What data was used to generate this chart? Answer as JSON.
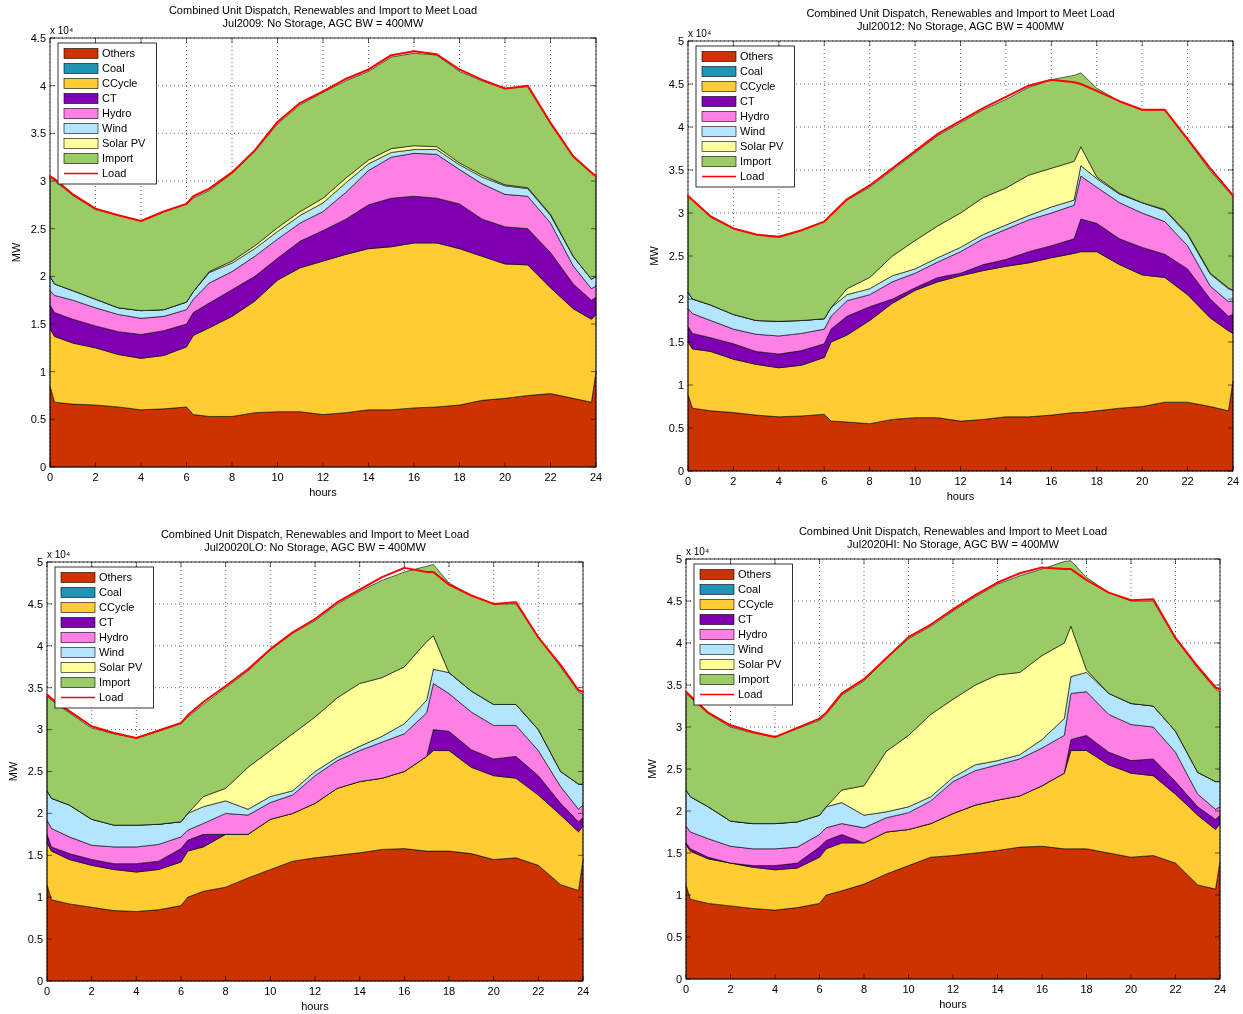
{
  "chart_data": [
    {
      "type": "area",
      "stacked": true,
      "title": "Combined Unit Dispatch, Renewables and Import to Meet Load",
      "subtitle": "Jul2009: No Storage, AGC BW = 400MW",
      "xlabel": "hours",
      "ylabel": "MW",
      "annotations": [
        "x 10⁴"
      ],
      "xlim": [
        0,
        24
      ],
      "xticks": [
        0,
        2,
        4,
        6,
        8,
        10,
        12,
        14,
        16,
        18,
        20,
        22,
        24
      ],
      "ylim": [
        0,
        4.5
      ],
      "yticks": [
        0,
        0.5,
        1,
        1.5,
        2,
        2.5,
        3,
        3.5,
        4,
        4.5
      ],
      "grid": true,
      "legend": "top left",
      "x": [
        0,
        0.2,
        1,
        2,
        3,
        4,
        5,
        6,
        6.3,
        7,
        8,
        9,
        10,
        11,
        12,
        13,
        14,
        15,
        16,
        17,
        18,
        19,
        20,
        21,
        22,
        23,
        23.8,
        24
      ],
      "series": [
        {
          "name": "Others",
          "color": "#cc3300",
          "values": [
            0.85,
            0.68,
            0.66,
            0.65,
            0.63,
            0.6,
            0.61,
            0.63,
            0.55,
            0.53,
            0.53,
            0.57,
            0.58,
            0.58,
            0.55,
            0.57,
            0.6,
            0.6,
            0.62,
            0.63,
            0.65,
            0.7,
            0.72,
            0.75,
            0.77,
            0.72,
            0.68,
            1.0
          ]
        },
        {
          "name": "Coal",
          "color": "#1f94b4",
          "values": [
            null,
            null,
            null,
            null,
            null,
            null,
            null,
            null,
            null,
            null,
            null,
            null,
            null,
            null,
            null,
            null,
            null,
            null,
            null,
            null,
            null,
            null,
            null,
            null,
            null,
            null,
            null,
            null
          ]
        },
        {
          "name": "CCycle",
          "color": "#ffcc33",
          "values": [
            0.6,
            0.69,
            0.64,
            0.6,
            0.55,
            0.54,
            0.56,
            0.63,
            0.83,
            0.93,
            1.05,
            1.17,
            1.38,
            1.51,
            1.61,
            1.66,
            1.69,
            1.71,
            1.73,
            1.72,
            1.64,
            1.51,
            1.41,
            1.37,
            1.11,
            0.94,
            0.87,
            0.6
          ]
        },
        {
          "name": "CT",
          "color": "#7f00b2",
          "values": [
            0.25,
            0.25,
            0.25,
            0.23,
            0.24,
            0.25,
            0.26,
            0.24,
            0.24,
            0.26,
            0.28,
            0.26,
            0.23,
            0.28,
            0.32,
            0.37,
            0.46,
            0.51,
            0.49,
            0.47,
            0.47,
            0.39,
            0.39,
            0.38,
            0.37,
            0.26,
            0.2,
            0.18
          ]
        },
        {
          "name": "Hydro",
          "color": "#ff80e5",
          "values": [
            0.15,
            0.18,
            0.2,
            0.19,
            0.18,
            0.17,
            0.15,
            0.15,
            0.14,
            0.21,
            0.19,
            0.21,
            0.2,
            0.19,
            0.2,
            0.28,
            0.36,
            0.43,
            0.45,
            0.46,
            0.36,
            0.37,
            0.34,
            0.34,
            0.31,
            0.19,
            0.12,
            0.12
          ]
        },
        {
          "name": "Wind",
          "color": "#b3e5ff",
          "values": [
            0.15,
            0.12,
            0.1,
            0.09,
            0.07,
            0.08,
            0.07,
            0.08,
            0.08,
            0.11,
            0.09,
            0.08,
            0.08,
            0.08,
            0.09,
            0.1,
            0.07,
            0.05,
            0.04,
            0.05,
            0.05,
            0.07,
            0.09,
            0.08,
            0.08,
            0.1,
            0.1,
            0.1
          ]
        },
        {
          "name": "Solar PV",
          "color": "#ffff99",
          "values": [
            0,
            0,
            0,
            0,
            0,
            0,
            0,
            0,
            0,
            0.01,
            0.02,
            0.03,
            0.04,
            0.04,
            0.05,
            0.05,
            0.04,
            0.04,
            0.04,
            0.03,
            0.02,
            0.02,
            0.01,
            0.01,
            0.01,
            0,
            0,
            0
          ]
        },
        {
          "name": "Import",
          "color": "#99cc66",
          "values": [
            1.05,
            1.08,
            1.0,
            0.94,
            0.97,
            0.94,
            1.03,
            1.03,
            0.98,
            0.85,
            0.92,
            0.99,
            1.09,
            1.12,
            1.11,
            1.02,
            0.93,
            0.96,
            0.97,
            0.96,
            0.96,
            0.99,
            1.01,
            1.06,
            0.95,
            1.04,
            1.11,
            1.05
          ]
        },
        {
          "name": "Load",
          "type": "line",
          "color": "#ff0000",
          "values": [
            3.05,
            3.02,
            2.86,
            2.71,
            2.64,
            2.58,
            2.68,
            2.76,
            2.84,
            2.92,
            3.09,
            3.32,
            3.62,
            3.82,
            3.94,
            4.07,
            4.17,
            4.32,
            4.36,
            4.33,
            4.17,
            4.06,
            3.97,
            4.0,
            3.61,
            3.26,
            3.09,
            3.05
          ]
        }
      ]
    },
    {
      "type": "area",
      "stacked": true,
      "title": "Combined Unit Dispatch, Renewables and Import to Meet Load",
      "subtitle": "Jul20012: No Storage, AGC BW = 400MW",
      "xlabel": "hours",
      "ylabel": "MW",
      "annotations": [
        "x 10⁴"
      ],
      "xlim": [
        0,
        24
      ],
      "xticks": [
        0,
        2,
        4,
        6,
        8,
        10,
        12,
        14,
        16,
        18,
        20,
        22,
        24
      ],
      "ylim": [
        0,
        5
      ],
      "yticks": [
        0,
        0.5,
        1,
        1.5,
        2,
        2.5,
        3,
        3.5,
        4,
        4.5,
        5
      ],
      "grid": true,
      "legend": "top left",
      "x": [
        0,
        0.2,
        1,
        2,
        3,
        4,
        5,
        6,
        6.3,
        7,
        8,
        9,
        10,
        11,
        12,
        13,
        14,
        15,
        16,
        17,
        17.3,
        18,
        19,
        20,
        21,
        22,
        23,
        23.8,
        24
      ],
      "series": [
        {
          "name": "Others",
          "color": "#cc3300",
          "values": [
            0.89,
            0.73,
            0.7,
            0.68,
            0.65,
            0.63,
            0.64,
            0.66,
            0.58,
            0.57,
            0.55,
            0.6,
            0.62,
            0.62,
            0.58,
            0.6,
            0.63,
            0.63,
            0.65,
            0.68,
            0.68,
            0.7,
            0.73,
            0.75,
            0.8,
            0.8,
            0.75,
            0.7,
            1.05
          ]
        },
        {
          "name": "Coal",
          "color": "#1f94b4",
          "values": [
            null,
            null,
            null,
            null,
            null,
            null,
            null,
            null,
            null,
            null,
            null,
            null,
            null,
            null,
            null,
            null,
            null,
            null,
            null,
            null,
            null,
            null,
            null,
            null,
            null,
            null,
            null,
            null,
            null
          ]
        },
        {
          "name": "CCycle",
          "color": "#ffcc33",
          "values": [
            0.61,
            0.69,
            0.69,
            0.62,
            0.59,
            0.57,
            0.59,
            0.66,
            0.92,
            1.01,
            1.2,
            1.35,
            1.48,
            1.58,
            1.69,
            1.73,
            1.75,
            1.79,
            1.83,
            1.85,
            1.87,
            1.85,
            1.67,
            1.53,
            1.45,
            1.25,
            1.03,
            0.93,
            0.55
          ]
        },
        {
          "name": "CT",
          "color": "#7f00b2",
          "values": [
            0.18,
            0.18,
            0.16,
            0.18,
            0.15,
            0.16,
            0.17,
            0.16,
            0.15,
            0.22,
            0.16,
            0.05,
            0.03,
            0.05,
            0.03,
            0.07,
            0.08,
            0.13,
            0.14,
            0.17,
            0.38,
            0.33,
            0.3,
            0.32,
            0.27,
            0.3,
            0.22,
            0.17,
            0.22
          ]
        },
        {
          "name": "Hydro",
          "color": "#ff80e5",
          "values": [
            0.21,
            0.23,
            0.2,
            0.17,
            0.2,
            0.21,
            0.2,
            0.17,
            0.15,
            0.18,
            0.14,
            0.2,
            0.17,
            0.18,
            0.25,
            0.3,
            0.35,
            0.37,
            0.38,
            0.39,
            0.5,
            0.42,
            0.42,
            0.4,
            0.38,
            0.27,
            0.15,
            0.17,
            0.16
          ]
        },
        {
          "name": "Wind",
          "color": "#b3e5ff",
          "values": [
            0.19,
            0.17,
            0.18,
            0.17,
            0.16,
            0.17,
            0.15,
            0.12,
            0.1,
            0.07,
            0.07,
            0.07,
            0.05,
            0.05,
            0.05,
            0.05,
            0.05,
            0.05,
            0.07,
            0.06,
            0.12,
            0.1,
            0.1,
            0.12,
            0.13,
            0.13,
            0.14,
            0.15,
            0.12
          ]
        },
        {
          "name": "Solar PV",
          "color": "#ffff99",
          "values": [
            0,
            0,
            0,
            0,
            0,
            0,
            0,
            0,
            0,
            0.07,
            0.13,
            0.23,
            0.33,
            0.37,
            0.4,
            0.43,
            0.43,
            0.47,
            0.45,
            0.45,
            0.22,
            0.02,
            0.01,
            0,
            0.01,
            0.01,
            0.01,
            0.01,
            0
          ]
        },
        {
          "name": "Import",
          "color": "#99cc66",
          "values": [
            1.13,
            1.15,
            1.02,
            1.0,
            1.0,
            0.99,
            1.05,
            1.13,
            1.08,
            1.03,
            1.05,
            1.0,
            1.02,
            1.05,
            1.05,
            1.02,
            1.03,
            1.02,
            1.03,
            1.0,
            0.86,
            1.03,
            1.07,
            1.08,
            1.16,
            1.09,
            1.19,
            1.12,
            1.1
          ]
        },
        {
          "name": "Load",
          "type": "line",
          "color": "#ff0000",
          "values": [
            3.2,
            3.15,
            2.96,
            2.82,
            2.75,
            2.72,
            2.8,
            2.9,
            2.98,
            3.16,
            3.32,
            3.52,
            3.72,
            3.92,
            4.07,
            4.22,
            4.35,
            4.48,
            4.55,
            4.52,
            4.5,
            4.42,
            4.3,
            4.2,
            4.2,
            3.86,
            3.52,
            3.27,
            3.2
          ]
        }
      ]
    },
    {
      "type": "area",
      "stacked": true,
      "title": "Combined Unit Dispatch, Renewables and Import to Meet Load",
      "subtitle": "Jul20020LO: No Storage, AGC BW = 400MW",
      "xlabel": "hours",
      "ylabel": "MW",
      "annotations": [
        "x 10⁴"
      ],
      "xlim": [
        0,
        24
      ],
      "xticks": [
        0,
        2,
        4,
        6,
        8,
        10,
        12,
        14,
        16,
        18,
        20,
        22,
        24
      ],
      "ylim": [
        0,
        5
      ],
      "yticks": [
        0,
        0.5,
        1,
        1.5,
        2,
        2.5,
        3,
        3.5,
        4,
        4.5,
        5
      ],
      "grid": true,
      "legend": "top left",
      "x": [
        0,
        0.2,
        1,
        2,
        3,
        4,
        5,
        6,
        6.3,
        7,
        8,
        9,
        10,
        11,
        12,
        13,
        14,
        15,
        16,
        17,
        17.3,
        18,
        19,
        20,
        21,
        22,
        23,
        23.8,
        24
      ],
      "series": [
        {
          "name": "Others",
          "color": "#cc3300",
          "values": [
            1.15,
            0.97,
            0.92,
            0.88,
            0.84,
            0.83,
            0.85,
            0.9,
            1.0,
            1.07,
            1.12,
            1.23,
            1.33,
            1.43,
            1.47,
            1.5,
            1.53,
            1.57,
            1.58,
            1.55,
            1.55,
            1.55,
            1.52,
            1.45,
            1.47,
            1.38,
            1.15,
            1.08,
            1.45
          ]
        },
        {
          "name": "Coal",
          "color": "#1f94b4",
          "values": [
            null,
            null,
            null,
            null,
            null,
            null,
            null,
            null,
            null,
            null,
            null,
            null,
            null,
            null,
            null,
            null,
            null,
            null,
            null,
            null,
            null,
            null,
            null,
            null,
            null,
            null,
            null,
            null,
            null
          ]
        },
        {
          "name": "CCycle",
          "color": "#ffcc33",
          "values": [
            0.5,
            0.58,
            0.53,
            0.5,
            0.49,
            0.47,
            0.48,
            0.52,
            0.55,
            0.53,
            0.63,
            0.52,
            0.6,
            0.57,
            0.65,
            0.8,
            0.85,
            0.85,
            0.92,
            1.13,
            1.2,
            1.2,
            1.03,
            1.0,
            0.95,
            0.84,
            0.83,
            0.7,
            0.4
          ]
        },
        {
          "name": "CT",
          "color": "#7f00b2",
          "values": [
            0.1,
            0.05,
            0.07,
            0.07,
            0.07,
            0.1,
            0.1,
            0.16,
            0.13,
            0.15,
            0,
            0,
            0,
            0,
            0,
            0,
            0,
            0,
            0,
            0,
            0.25,
            0.23,
            0.21,
            0.2,
            0.26,
            0.23,
            0.14,
            0.12,
            0.1
          ]
        },
        {
          "name": "Hydro",
          "color": "#ff80e5",
          "values": [
            0.17,
            0.22,
            0.2,
            0.17,
            0.2,
            0.2,
            0.2,
            0.14,
            0.12,
            0.13,
            0.25,
            0.23,
            0.2,
            0.22,
            0.33,
            0.33,
            0.37,
            0.43,
            0.45,
            0.52,
            0.55,
            0.45,
            0.45,
            0.4,
            0.37,
            0.3,
            0.2,
            0.15,
            0.15
          ]
        },
        {
          "name": "Wind",
          "color": "#b3e5ff",
          "values": [
            0.35,
            0.36,
            0.38,
            0.31,
            0.26,
            0.26,
            0.24,
            0.18,
            0.2,
            0.2,
            0.15,
            0.07,
            0.07,
            0.05,
            0.05,
            0.04,
            0.05,
            0.07,
            0.12,
            0.15,
            0.17,
            0.25,
            0.25,
            0.25,
            0.25,
            0.25,
            0.18,
            0.3,
            0.25
          ]
        },
        {
          "name": "Solar PV",
          "color": "#ffff99",
          "values": [
            0,
            0,
            0,
            0,
            0,
            0,
            0,
            0,
            0,
            0.12,
            0.15,
            0.5,
            0.55,
            0.68,
            0.65,
            0.71,
            0.75,
            0.7,
            0.68,
            0.7,
            0.4,
            0,
            0,
            0,
            0,
            0,
            0,
            0,
            0
          ]
        },
        {
          "name": "Import",
          "color": "#99cc66",
          "values": [
            1.13,
            1.17,
            1.1,
            1.09,
            1.09,
            1.04,
            1.11,
            1.17,
            1.15,
            1.1,
            1.2,
            1.15,
            1.2,
            1.2,
            1.15,
            1.12,
            1.1,
            1.16,
            1.13,
            0.9,
            0.85,
            1.07,
            1.14,
            1.2,
            1.2,
            1.1,
            1.25,
            1.1,
            1.07
          ]
        },
        {
          "name": "Load",
          "type": "line",
          "color": "#ff0000",
          "values": [
            3.42,
            3.37,
            3.22,
            3.04,
            2.96,
            2.9,
            2.99,
            3.08,
            3.17,
            3.33,
            3.52,
            3.72,
            3.96,
            4.16,
            4.32,
            4.52,
            4.67,
            4.82,
            4.93,
            4.88,
            4.88,
            4.73,
            4.6,
            4.5,
            4.52,
            4.1,
            3.77,
            3.47,
            3.45
          ]
        }
      ]
    },
    {
      "type": "area",
      "stacked": true,
      "title": "Combined Unit Dispatch, Renewables and Import to Meet Load",
      "subtitle": "Jul2020HI: No Storage, AGC BW = 400MW",
      "xlabel": "hours",
      "ylabel": "MW",
      "annotations": [
        "x 10⁴"
      ],
      "xlim": [
        0,
        24
      ],
      "xticks": [
        0,
        2,
        4,
        6,
        8,
        10,
        12,
        14,
        16,
        18,
        20,
        22,
        24
      ],
      "ylim": [
        0,
        5
      ],
      "yticks": [
        0,
        0.5,
        1,
        1.5,
        2,
        2.5,
        3,
        3.5,
        4,
        4.5,
        5
      ],
      "grid": true,
      "legend": "top left",
      "x": [
        0,
        0.2,
        1,
        2,
        3,
        4,
        5,
        6,
        6.3,
        7,
        8,
        9,
        10,
        11,
        12,
        13,
        14,
        15,
        16,
        17,
        17.3,
        18,
        19,
        20,
        21,
        22,
        23,
        23.8,
        24
      ],
      "series": [
        {
          "name": "Others",
          "color": "#cc3300",
          "values": [
            1.12,
            0.95,
            0.9,
            0.87,
            0.84,
            0.82,
            0.85,
            0.9,
            1.0,
            1.05,
            1.13,
            1.25,
            1.35,
            1.45,
            1.47,
            1.5,
            1.53,
            1.57,
            1.58,
            1.55,
            1.55,
            1.55,
            1.5,
            1.45,
            1.47,
            1.38,
            1.12,
            1.07,
            1.4
          ]
        },
        {
          "name": "Coal",
          "color": "#1f94b4",
          "values": [
            null,
            null,
            null,
            null,
            null,
            null,
            null,
            null,
            null,
            null,
            null,
            null,
            null,
            null,
            null,
            null,
            null,
            null,
            null,
            null,
            null,
            null,
            null,
            null,
            null,
            null,
            null,
            null,
            null
          ]
        },
        {
          "name": "CCycle",
          "color": "#ffcc33",
          "values": [
            0.48,
            0.57,
            0.53,
            0.51,
            0.49,
            0.48,
            0.47,
            0.55,
            0.55,
            0.57,
            0.49,
            0.5,
            0.43,
            0.4,
            0.5,
            0.57,
            0.6,
            0.61,
            0.72,
            0.9,
            1.17,
            1.17,
            1.05,
            1.0,
            0.95,
            0.82,
            0.83,
            0.71,
            0.45
          ]
        },
        {
          "name": "CT",
          "color": "#7f00b2",
          "values": [
            0.02,
            0.03,
            0.02,
            0,
            0.02,
            0.05,
            0.06,
            0.12,
            0.1,
            0.1,
            0,
            0,
            0,
            0,
            0,
            0,
            0,
            0,
            0,
            0,
            0.13,
            0.18,
            0.15,
            0.15,
            0.2,
            0.15,
            0.1,
            0.12,
            0.1
          ]
        },
        {
          "name": "Hydro",
          "color": "#ff80e5",
          "values": [
            0.2,
            0.2,
            0.22,
            0.2,
            0.2,
            0.2,
            0.19,
            0.15,
            0.15,
            0.13,
            0.18,
            0.17,
            0.2,
            0.27,
            0.38,
            0.41,
            0.42,
            0.44,
            0.45,
            0.45,
            0.55,
            0.52,
            0.45,
            0.43,
            0.38,
            0.35,
            0.15,
            0.12,
            0.1
          ]
        },
        {
          "name": "Wind",
          "color": "#b3e5ff",
          "values": [
            0.43,
            0.42,
            0.38,
            0.3,
            0.3,
            0.3,
            0.3,
            0.23,
            0.25,
            0.25,
            0.15,
            0.07,
            0.07,
            0.05,
            0.05,
            0.07,
            0.05,
            0.05,
            0.1,
            0.2,
            0.2,
            0.23,
            0.25,
            0.25,
            0.25,
            0.25,
            0.26,
            0.33,
            0.3
          ]
        },
        {
          "name": "Solar PV",
          "color": "#ffff99",
          "values": [
            0,
            0,
            0,
            0,
            0,
            0,
            0,
            0,
            0,
            0.15,
            0.35,
            0.72,
            0.85,
            0.98,
            0.93,
            0.95,
            1.02,
            0.98,
            1.0,
            0.9,
            0.6,
            0.03,
            0,
            0,
            0,
            0,
            0,
            0,
            0
          ]
        },
        {
          "name": "Import",
          "color": "#99cc66",
          "values": [
            1.15,
            1.18,
            1.11,
            1.12,
            1.08,
            1.03,
            1.11,
            1.13,
            1.1,
            1.13,
            1.25,
            1.1,
            1.15,
            1.05,
            1.05,
            1.05,
            1.08,
            1.15,
            1.03,
            0.97,
            0.78,
            1.1,
            1.2,
            1.22,
            1.25,
            1.1,
            1.24,
            1.1,
            1.07
          ]
        },
        {
          "name": "Load",
          "type": "line",
          "color": "#ff0000",
          "values": [
            3.42,
            3.37,
            3.17,
            3.02,
            2.94,
            2.88,
            2.99,
            3.1,
            3.17,
            3.4,
            3.57,
            3.82,
            4.07,
            4.22,
            4.4,
            4.57,
            4.72,
            4.83,
            4.9,
            4.88,
            4.88,
            4.75,
            4.6,
            4.51,
            4.52,
            4.06,
            3.72,
            3.47,
            3.45
          ]
        }
      ]
    }
  ]
}
